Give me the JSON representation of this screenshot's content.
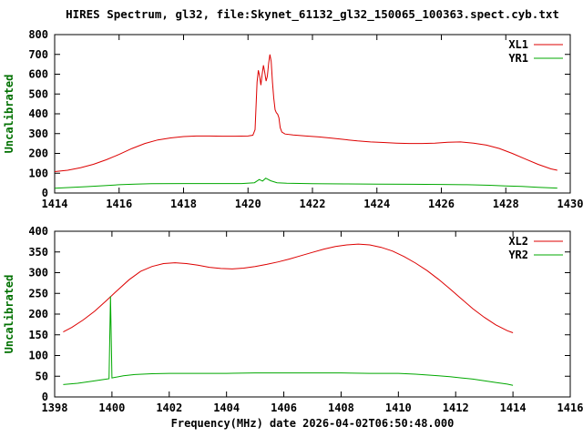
{
  "title": "HIRES Spectrum, gl32, file:Skynet_61132_gl32_150065_100363.spect.cyb.txt",
  "xlabel": "Frequency(MHz) date 2026-04-02T06:50:48.000",
  "colors": {
    "red": "#dd0000",
    "green": "#00a800",
    "ylabel_green": "#007000",
    "text": "#000000",
    "background": "#ffffff"
  },
  "chart_data": [
    {
      "type": "line",
      "ylabel": "Uncalibrated",
      "xlim": [
        1414,
        1430
      ],
      "ylim": [
        0,
        800
      ],
      "xticks": [
        1414,
        1416,
        1418,
        1420,
        1422,
        1424,
        1426,
        1428,
        1430
      ],
      "yticks": [
        0,
        100,
        200,
        300,
        400,
        500,
        600,
        700,
        800
      ],
      "grid": false,
      "legend_position": "top-right",
      "series": [
        {
          "name": "XL1",
          "color": "#dd0000",
          "points": [
            [
              1414.0,
              108
            ],
            [
              1414.4,
              115
            ],
            [
              1414.8,
              128
            ],
            [
              1415.2,
              145
            ],
            [
              1415.6,
              168
            ],
            [
              1416.0,
              195
            ],
            [
              1416.4,
              225
            ],
            [
              1416.8,
              250
            ],
            [
              1417.2,
              268
            ],
            [
              1417.6,
              278
            ],
            [
              1418.0,
              285
            ],
            [
              1418.4,
              288
            ],
            [
              1418.8,
              288
            ],
            [
              1419.2,
              287
            ],
            [
              1419.6,
              287
            ],
            [
              1420.0,
              288
            ],
            [
              1420.15,
              292
            ],
            [
              1420.22,
              320
            ],
            [
              1420.28,
              560
            ],
            [
              1420.32,
              620
            ],
            [
              1420.36,
              590
            ],
            [
              1420.4,
              545
            ],
            [
              1420.44,
              600
            ],
            [
              1420.48,
              645
            ],
            [
              1420.52,
              610
            ],
            [
              1420.56,
              565
            ],
            [
              1420.6,
              590
            ],
            [
              1420.64,
              655
            ],
            [
              1420.68,
              700
            ],
            [
              1420.72,
              665
            ],
            [
              1420.76,
              560
            ],
            [
              1420.8,
              480
            ],
            [
              1420.84,
              420
            ],
            [
              1420.88,
              405
            ],
            [
              1420.92,
              398
            ],
            [
              1420.96,
              380
            ],
            [
              1421.0,
              330
            ],
            [
              1421.05,
              308
            ],
            [
              1421.15,
              298
            ],
            [
              1421.4,
              293
            ],
            [
              1421.8,
              288
            ],
            [
              1422.2,
              283
            ],
            [
              1422.6,
              277
            ],
            [
              1423.0,
              270
            ],
            [
              1423.4,
              263
            ],
            [
              1423.8,
              258
            ],
            [
              1424.2,
              255
            ],
            [
              1424.6,
              252
            ],
            [
              1425.0,
              250
            ],
            [
              1425.4,
              250
            ],
            [
              1425.8,
              252
            ],
            [
              1426.2,
              256
            ],
            [
              1426.6,
              258
            ],
            [
              1427.0,
              252
            ],
            [
              1427.4,
              242
            ],
            [
              1427.8,
              225
            ],
            [
              1428.2,
              200
            ],
            [
              1428.6,
              172
            ],
            [
              1429.0,
              145
            ],
            [
              1429.4,
              122
            ],
            [
              1429.6,
              115
            ]
          ]
        },
        {
          "name": "YR1",
          "color": "#00a800",
          "points": [
            [
              1414.0,
              24
            ],
            [
              1414.5,
              28
            ],
            [
              1415.0,
              32
            ],
            [
              1415.5,
              37
            ],
            [
              1416.0,
              42
            ],
            [
              1416.5,
              45
            ],
            [
              1417.0,
              47
            ],
            [
              1418.0,
              48
            ],
            [
              1419.0,
              48
            ],
            [
              1419.8,
              48
            ],
            [
              1420.2,
              52
            ],
            [
              1420.35,
              68
            ],
            [
              1420.45,
              60
            ],
            [
              1420.55,
              75
            ],
            [
              1420.7,
              62
            ],
            [
              1420.9,
              52
            ],
            [
              1421.2,
              49
            ],
            [
              1422.0,
              47
            ],
            [
              1423.0,
              46
            ],
            [
              1424.0,
              45
            ],
            [
              1425.0,
              44
            ],
            [
              1426.0,
              43
            ],
            [
              1426.8,
              42
            ],
            [
              1427.5,
              39
            ],
            [
              1428.0,
              36
            ],
            [
              1428.5,
              33
            ],
            [
              1429.0,
              29
            ],
            [
              1429.6,
              25
            ]
          ]
        }
      ]
    },
    {
      "type": "line",
      "ylabel": "Uncalibrated",
      "xlim": [
        1398,
        1416
      ],
      "ylim": [
        0,
        400
      ],
      "xticks": [
        1398,
        1400,
        1402,
        1404,
        1406,
        1408,
        1410,
        1412,
        1414,
        1416
      ],
      "yticks": [
        0,
        50,
        100,
        150,
        200,
        250,
        300,
        350,
        400
      ],
      "grid": false,
      "legend_position": "top-right",
      "series": [
        {
          "name": "XL2",
          "color": "#dd0000",
          "points": [
            [
              1398.3,
              157
            ],
            [
              1398.6,
              168
            ],
            [
              1399.0,
              186
            ],
            [
              1399.4,
              207
            ],
            [
              1399.8,
              232
            ],
            [
              1400.2,
              258
            ],
            [
              1400.6,
              283
            ],
            [
              1401.0,
              303
            ],
            [
              1401.4,
              315
            ],
            [
              1401.8,
              322
            ],
            [
              1402.2,
              324
            ],
            [
              1402.6,
              322
            ],
            [
              1403.0,
              318
            ],
            [
              1403.4,
              313
            ],
            [
              1403.8,
              310
            ],
            [
              1404.2,
              309
            ],
            [
              1404.6,
              311
            ],
            [
              1405.0,
              315
            ],
            [
              1405.4,
              320
            ],
            [
              1405.8,
              326
            ],
            [
              1406.2,
              333
            ],
            [
              1406.6,
              341
            ],
            [
              1407.0,
              349
            ],
            [
              1407.4,
              357
            ],
            [
              1407.8,
              363
            ],
            [
              1408.2,
              367
            ],
            [
              1408.6,
              369
            ],
            [
              1409.0,
              367
            ],
            [
              1409.4,
              361
            ],
            [
              1409.8,
              352
            ],
            [
              1410.2,
              339
            ],
            [
              1410.6,
              323
            ],
            [
              1411.0,
              305
            ],
            [
              1411.4,
              284
            ],
            [
              1411.8,
              261
            ],
            [
              1412.2,
              237
            ],
            [
              1412.6,
              213
            ],
            [
              1413.0,
              192
            ],
            [
              1413.4,
              174
            ],
            [
              1413.8,
              160
            ],
            [
              1414.0,
              155
            ]
          ]
        },
        {
          "name": "YR2",
          "color": "#00a800",
          "points": [
            [
              1398.3,
              30
            ],
            [
              1398.8,
              33
            ],
            [
              1399.3,
              38
            ],
            [
              1399.7,
              42
            ],
            [
              1399.9,
              44
            ],
            [
              1399.95,
              243
            ],
            [
              1400.0,
              46
            ],
            [
              1400.4,
              51
            ],
            [
              1400.8,
              54
            ],
            [
              1401.4,
              56
            ],
            [
              1402.0,
              57
            ],
            [
              1403.0,
              57
            ],
            [
              1404.0,
              57
            ],
            [
              1405.0,
              58
            ],
            [
              1406.0,
              58
            ],
            [
              1407.0,
              58
            ],
            [
              1408.0,
              58
            ],
            [
              1409.0,
              57
            ],
            [
              1410.0,
              57
            ],
            [
              1410.6,
              55
            ],
            [
              1411.0,
              53
            ],
            [
              1411.4,
              51
            ],
            [
              1411.8,
              49
            ],
            [
              1412.2,
              46
            ],
            [
              1412.6,
              43
            ],
            [
              1413.0,
              39
            ],
            [
              1413.4,
              35
            ],
            [
              1413.8,
              31
            ],
            [
              1414.0,
              28
            ]
          ]
        }
      ]
    }
  ]
}
